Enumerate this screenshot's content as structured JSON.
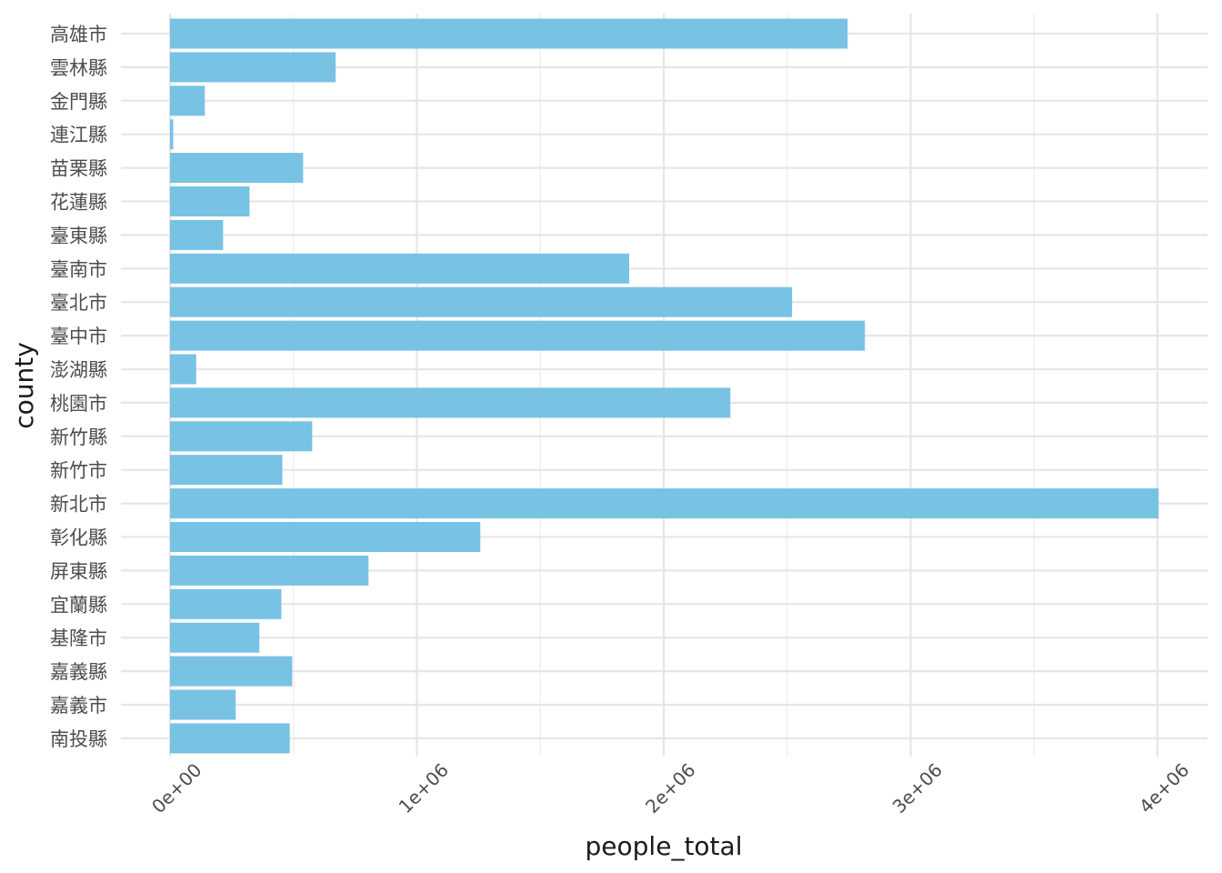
{
  "chart_data": {
    "type": "bar",
    "orientation": "horizontal",
    "xlabel": "people_total",
    "ylabel": "county",
    "xlim": [
      0,
      4000000
    ],
    "x_ticks": [
      {
        "value": 0,
        "label": "0e+00"
      },
      {
        "value": 1000000,
        "label": "1e+06"
      },
      {
        "value": 2000000,
        "label": "2e+06"
      },
      {
        "value": 3000000,
        "label": "3e+06"
      },
      {
        "value": 4000000,
        "label": "4e+06"
      }
    ],
    "grid": true,
    "bar_color": "#78c2e4",
    "categories": [
      "高雄市",
      "雲林縣",
      "金門縣",
      "連江縣",
      "苗栗縣",
      "花蓮縣",
      "臺東縣",
      "臺南市",
      "臺北市",
      "臺中市",
      "澎湖縣",
      "桃園市",
      "新竹縣",
      "新竹市",
      "新北市",
      "彰化縣",
      "屏東縣",
      "宜蘭縣",
      "基隆市",
      "嘉義縣",
      "嘉義市",
      "南投縣"
    ],
    "values": [
      2745000,
      671000,
      141000,
      13000,
      539000,
      322000,
      215000,
      1860000,
      2520000,
      2815000,
      106000,
      2270000,
      576000,
      455000,
      4005000,
      1257000,
      804000,
      451000,
      362000,
      495000,
      266000,
      485000
    ]
  }
}
